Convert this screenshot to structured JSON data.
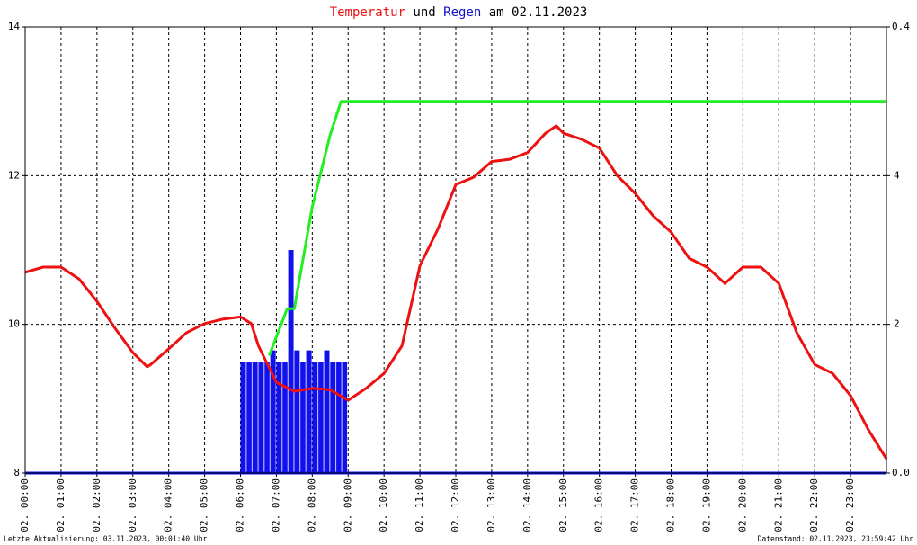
{
  "chart_data": {
    "type": "line",
    "title_parts": [
      "Temperatur",
      "und",
      "Regen",
      "am 02.11.2023"
    ],
    "footer_left": "Letzte Aktualisierung: 03.11.2023, 00:01:40 Uhr",
    "footer_right": "Datenstand: 02.11.2023, 23:59:42 Uhr",
    "xlim": [
      0,
      24
    ],
    "xticks": [
      {
        "value": 0,
        "label": "02. 00:00"
      },
      {
        "value": 1,
        "label": "02. 01:00"
      },
      {
        "value": 2,
        "label": "02. 02:00"
      },
      {
        "value": 3,
        "label": "02. 03:00"
      },
      {
        "value": 4,
        "label": "02. 04:00"
      },
      {
        "value": 5,
        "label": "02. 05:00"
      },
      {
        "value": 6,
        "label": "02. 06:00"
      },
      {
        "value": 7,
        "label": "02. 07:00"
      },
      {
        "value": 8,
        "label": "02. 08:00"
      },
      {
        "value": 9,
        "label": "02. 09:00"
      },
      {
        "value": 10,
        "label": "02. 10:00"
      },
      {
        "value": 11,
        "label": "02. 11:00"
      },
      {
        "value": 12,
        "label": "02. 12:00"
      },
      {
        "value": 13,
        "label": "02. 13:00"
      },
      {
        "value": 14,
        "label": "02. 14:00"
      },
      {
        "value": 15,
        "label": "02. 15:00"
      },
      {
        "value": 16,
        "label": "02. 16:00"
      },
      {
        "value": 17,
        "label": "02. 17:00"
      },
      {
        "value": 18,
        "label": "02. 18:00"
      },
      {
        "value": 19,
        "label": "02. 19:00"
      },
      {
        "value": 20,
        "label": "02. 20:00"
      },
      {
        "value": 21,
        "label": "02. 21:00"
      },
      {
        "value": 22,
        "label": "02. 22:00"
      },
      {
        "value": 23,
        "label": "02. 23:00"
      }
    ],
    "ylim": [
      8,
      14
    ],
    "yticks": [
      8,
      10,
      12,
      14
    ],
    "y2lim": [
      0,
      6
    ],
    "y2ticks": [
      2,
      4
    ],
    "y3lim": [
      0,
      0.4
    ],
    "y3ticks": [
      {
        "value": 0,
        "label": "0.0"
      },
      0.4
    ],
    "grid": true,
    "series": [
      {
        "name": "Temperatur",
        "color": "#ee1111",
        "kind": "line",
        "axis": "y",
        "x": [
          0,
          0.5,
          1,
          1.5,
          2,
          2.5,
          3,
          3.4,
          3.5,
          4,
          4.5,
          5,
          5.5,
          6,
          6.3,
          6.5,
          7,
          7.5,
          8,
          8.5,
          9,
          9.5,
          10,
          10.5,
          11,
          11.5,
          12,
          12.5,
          13,
          13.5,
          14,
          14.5,
          14.8,
          15,
          15.5,
          16,
          16.5,
          17,
          17.5,
          18,
          18.5,
          19,
          19.5,
          20,
          20.5,
          21,
          21.5,
          22,
          22.5,
          23,
          23.5,
          24
        ],
        "values": [
          10.7,
          10.77,
          10.77,
          10.61,
          10.31,
          9.95,
          9.62,
          9.43,
          9.46,
          9.67,
          9.89,
          10.01,
          10.07,
          10.1,
          10.01,
          9.71,
          9.22,
          9.1,
          9.14,
          9.12,
          8.98,
          9.14,
          9.34,
          9.71,
          10.79,
          11.28,
          11.88,
          11.98,
          12.19,
          12.22,
          12.31,
          12.57,
          12.67,
          12.57,
          12.49,
          12.37,
          12.0,
          11.76,
          11.46,
          11.24,
          10.89,
          10.77,
          10.55,
          10.77,
          10.77,
          10.55,
          9.89,
          9.46,
          9.34,
          9.04,
          8.58,
          8.19
        ]
      },
      {
        "color": "#22ee22",
        "kind": "line",
        "axis": "y2",
        "x": [
          6.8,
          7.3,
          7.5,
          7.6,
          8.0,
          8.5,
          8.8,
          24
        ],
        "values": [
          1.58,
          2.21,
          2.21,
          2.49,
          3.58,
          4.55,
          5.0,
          5.0
        ]
      },
      {
        "name": "Regen",
        "color": "#1111ee",
        "kind": "bar",
        "axis": "y3",
        "x": [
          6.0,
          6.17,
          6.33,
          6.5,
          6.67,
          6.83,
          7.0,
          7.17,
          7.33,
          7.5,
          7.67,
          7.83,
          8.0,
          8.17,
          8.33,
          8.5,
          8.67,
          8.83
        ],
        "values": [
          0.1,
          0.1,
          0.1,
          0.1,
          0.1,
          0.11,
          0.1,
          0.1,
          0.2,
          0.11,
          0.1,
          0.11,
          0.1,
          0.1,
          0.11,
          0.1,
          0.1,
          0.1
        ]
      }
    ]
  }
}
